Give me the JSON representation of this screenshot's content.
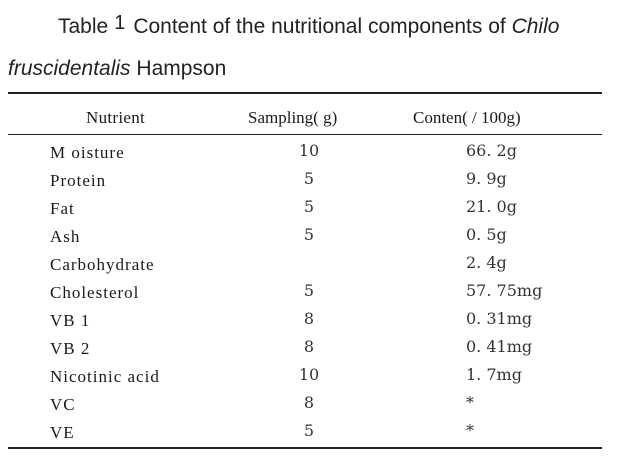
{
  "caption": {
    "label": "Table",
    "number": "1",
    "line1_text": "Content of the nutritional components of",
    "line1_italic": "Chilo",
    "line2_italic": "fruscidentalis",
    "line2_text": " Hampson"
  },
  "table": {
    "headers": {
      "nutrient": "Nutrient",
      "sampling": "Sampling( g)",
      "content": "Conten( / 100g)"
    },
    "rows": [
      {
        "nutrient": "M oisture",
        "sampling": "10",
        "content": "66. 2g"
      },
      {
        "nutrient": "Protein",
        "sampling": "5",
        "content": "9. 9g"
      },
      {
        "nutrient": "Fat",
        "sampling": "5",
        "content": "21. 0g"
      },
      {
        "nutrient": "Ash",
        "sampling": "5",
        "content": "0. 5g"
      },
      {
        "nutrient": "Carbohydrate",
        "sampling": "",
        "content": "2. 4g"
      },
      {
        "nutrient": "Cholesterol",
        "sampling": "5",
        "content": "57. 75mg"
      },
      {
        "nutrient": "VB 1",
        "sampling": "8",
        "content": "0. 31mg"
      },
      {
        "nutrient": "VB 2",
        "sampling": "8",
        "content": "0. 41mg"
      },
      {
        "nutrient": "Nicotinic acid",
        "sampling": "10",
        "content": "1. 7mg"
      },
      {
        "nutrient": "VC",
        "sampling": "8",
        "content": "*"
      },
      {
        "nutrient": "VE",
        "sampling": "5",
        "content": "*"
      }
    ]
  }
}
